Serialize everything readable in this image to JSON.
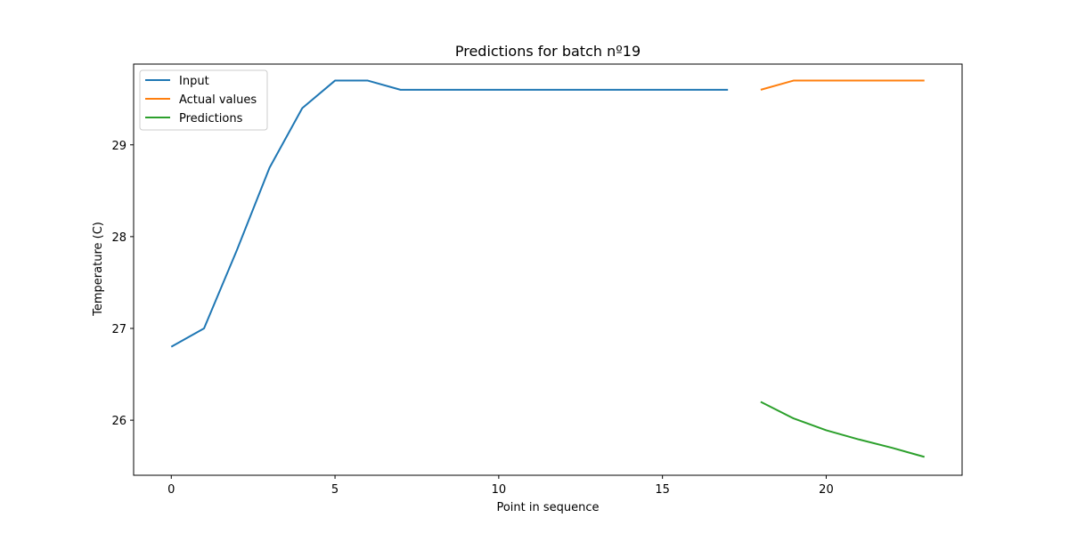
{
  "chart_data": {
    "type": "line",
    "title": "Predictions for batch nº19",
    "xlabel": "Point in sequence",
    "ylabel": "Temperature (C)",
    "xlim": [
      -1.15,
      24.15
    ],
    "ylim": [
      25.4,
      29.88
    ],
    "x_ticks": [
      0,
      5,
      10,
      15,
      20
    ],
    "y_ticks": [
      26,
      27,
      28,
      29
    ],
    "grid": false,
    "legend_position": "top-left",
    "series": [
      {
        "name": "Input",
        "color": "#1f77b4",
        "x": [
          0,
          1,
          2,
          3,
          4,
          5,
          6,
          7,
          8,
          9,
          10,
          11,
          12,
          13,
          14,
          15,
          16,
          17
        ],
        "values": [
          26.8,
          27.0,
          27.85,
          28.75,
          29.4,
          29.7,
          29.7,
          29.6,
          29.6,
          29.6,
          29.6,
          29.6,
          29.6,
          29.6,
          29.6,
          29.6,
          29.6,
          29.6
        ]
      },
      {
        "name": "Actual values",
        "color": "#ff7f0e",
        "x": [
          18,
          19,
          20,
          21,
          22,
          23
        ],
        "values": [
          29.6,
          29.7,
          29.7,
          29.7,
          29.7,
          29.7
        ]
      },
      {
        "name": "Predictions",
        "color": "#2ca02c",
        "x": [
          18,
          19,
          20,
          21,
          22,
          23
        ],
        "values": [
          26.2,
          26.02,
          25.89,
          25.79,
          25.7,
          25.6
        ]
      }
    ]
  }
}
